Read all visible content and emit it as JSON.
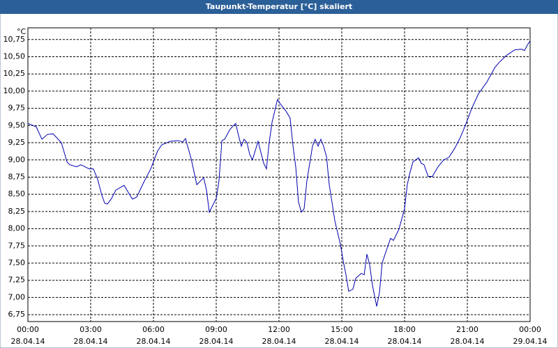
{
  "chart_data": {
    "type": "line",
    "title": "Taupunkt-Temperatur [°C] skaliert",
    "y_unit": "°C",
    "x": [
      0,
      0.4,
      0.67,
      0.93,
      1.2,
      1.6,
      1.87,
      2.0,
      2.33,
      2.53,
      2.93,
      3.13,
      3.33,
      3.53,
      3.67,
      3.8,
      4.0,
      4.2,
      4.6,
      4.87,
      5.0,
      5.2,
      5.53,
      5.87,
      6.2,
      6.4,
      6.8,
      7.2,
      7.4,
      7.53,
      7.8,
      8.07,
      8.4,
      8.53,
      8.67,
      8.8,
      9.0,
      9.13,
      9.27,
      9.4,
      9.67,
      9.93,
      10.07,
      10.2,
      10.33,
      10.47,
      10.6,
      10.73,
      11.0,
      11.27,
      11.4,
      11.53,
      11.67,
      11.93,
      12.07,
      12.33,
      12.53,
      12.67,
      12.8,
      12.93,
      13.07,
      13.2,
      13.33,
      13.6,
      13.73,
      13.87,
      14.0,
      14.13,
      14.27,
      14.4,
      14.53,
      14.67,
      14.93,
      15.07,
      15.2,
      15.33,
      15.53,
      15.67,
      15.93,
      16.07,
      16.2,
      16.33,
      16.47,
      16.67,
      16.8,
      16.93,
      17.07,
      17.33,
      17.47,
      17.73,
      18.0,
      18.13,
      18.27,
      18.4,
      18.67,
      18.8,
      18.93,
      19.13,
      19.33,
      19.6,
      19.87,
      20.13,
      20.4,
      20.67,
      20.93,
      21.2,
      21.53,
      21.93,
      22.33,
      22.53,
      22.87,
      23.27,
      23.6,
      23.73,
      23.87,
      24.0
    ],
    "series": [
      {
        "name": "Taupunkt-Temperatur",
        "color": "#0000b0",
        "values": [
          9.53,
          9.48,
          9.3,
          9.37,
          9.38,
          9.25,
          8.97,
          8.93,
          8.9,
          8.93,
          8.87,
          8.87,
          8.72,
          8.49,
          8.37,
          8.36,
          8.44,
          8.56,
          8.63,
          8.49,
          8.43,
          8.46,
          8.67,
          8.87,
          9.13,
          9.22,
          9.27,
          9.28,
          9.26,
          9.31,
          9.02,
          8.64,
          8.74,
          8.57,
          8.24,
          8.32,
          8.44,
          8.69,
          9.28,
          9.3,
          9.45,
          9.53,
          9.35,
          9.2,
          9.3,
          9.25,
          9.08,
          9.0,
          9.27,
          8.95,
          8.87,
          9.25,
          9.55,
          9.88,
          9.81,
          9.71,
          9.61,
          9.2,
          8.9,
          8.39,
          8.24,
          8.29,
          8.69,
          9.2,
          9.3,
          9.2,
          9.3,
          9.2,
          9.05,
          8.64,
          8.39,
          8.11,
          7.78,
          7.53,
          7.33,
          7.09,
          7.12,
          7.28,
          7.35,
          7.33,
          7.63,
          7.48,
          7.17,
          6.87,
          7.07,
          7.5,
          7.63,
          7.86,
          7.83,
          7.99,
          8.29,
          8.64,
          8.83,
          8.97,
          9.03,
          8.95,
          8.93,
          8.76,
          8.76,
          8.9,
          9.0,
          9.04,
          9.17,
          9.33,
          9.52,
          9.74,
          9.96,
          10.13,
          10.35,
          10.42,
          10.52,
          10.6,
          10.61,
          10.59,
          10.67,
          10.73
        ]
      }
    ],
    "xlim": [
      0,
      24
    ],
    "xticks": [
      {
        "value": 0,
        "label": "00:00",
        "date": "28.04.14"
      },
      {
        "value": 3,
        "label": "03:00",
        "date": "28.04.14"
      },
      {
        "value": 6,
        "label": "06:00",
        "date": "28.04.14"
      },
      {
        "value": 9,
        "label": "09:00",
        "date": "28.04.14"
      },
      {
        "value": 12,
        "label": "12:00",
        "date": "28.04.14"
      },
      {
        "value": 15,
        "label": "15:00",
        "date": "28.04.14"
      },
      {
        "value": 18,
        "label": "18:00",
        "date": "28.04.14"
      },
      {
        "value": 21,
        "label": "21:00",
        "date": "28.04.14"
      },
      {
        "value": 24,
        "label": "00:00",
        "date": "29.04.14"
      }
    ],
    "ylim": [
      6.65,
      10.92
    ],
    "yticks": [
      {
        "value": 6.75,
        "label": "6,75"
      },
      {
        "value": 7,
        "label": "7,00"
      },
      {
        "value": 7.25,
        "label": "7,25"
      },
      {
        "value": 7.5,
        "label": "7,50"
      },
      {
        "value": 7.75,
        "label": "7,75"
      },
      {
        "value": 8,
        "label": "8,00"
      },
      {
        "value": 8.25,
        "label": "8,25"
      },
      {
        "value": 8.5,
        "label": "8,50"
      },
      {
        "value": 8.75,
        "label": "8,75"
      },
      {
        "value": 9,
        "label": "9,00"
      },
      {
        "value": 9.25,
        "label": "9,25"
      },
      {
        "value": 9.5,
        "label": "9,50"
      },
      {
        "value": 9.75,
        "label": "9,75"
      },
      {
        "value": 10,
        "label": "10,00"
      },
      {
        "value": 10.25,
        "label": "10,25"
      },
      {
        "value": 10.5,
        "label": "10,50"
      },
      {
        "value": 10.75,
        "label": "10,75"
      }
    ],
    "grid": true
  }
}
